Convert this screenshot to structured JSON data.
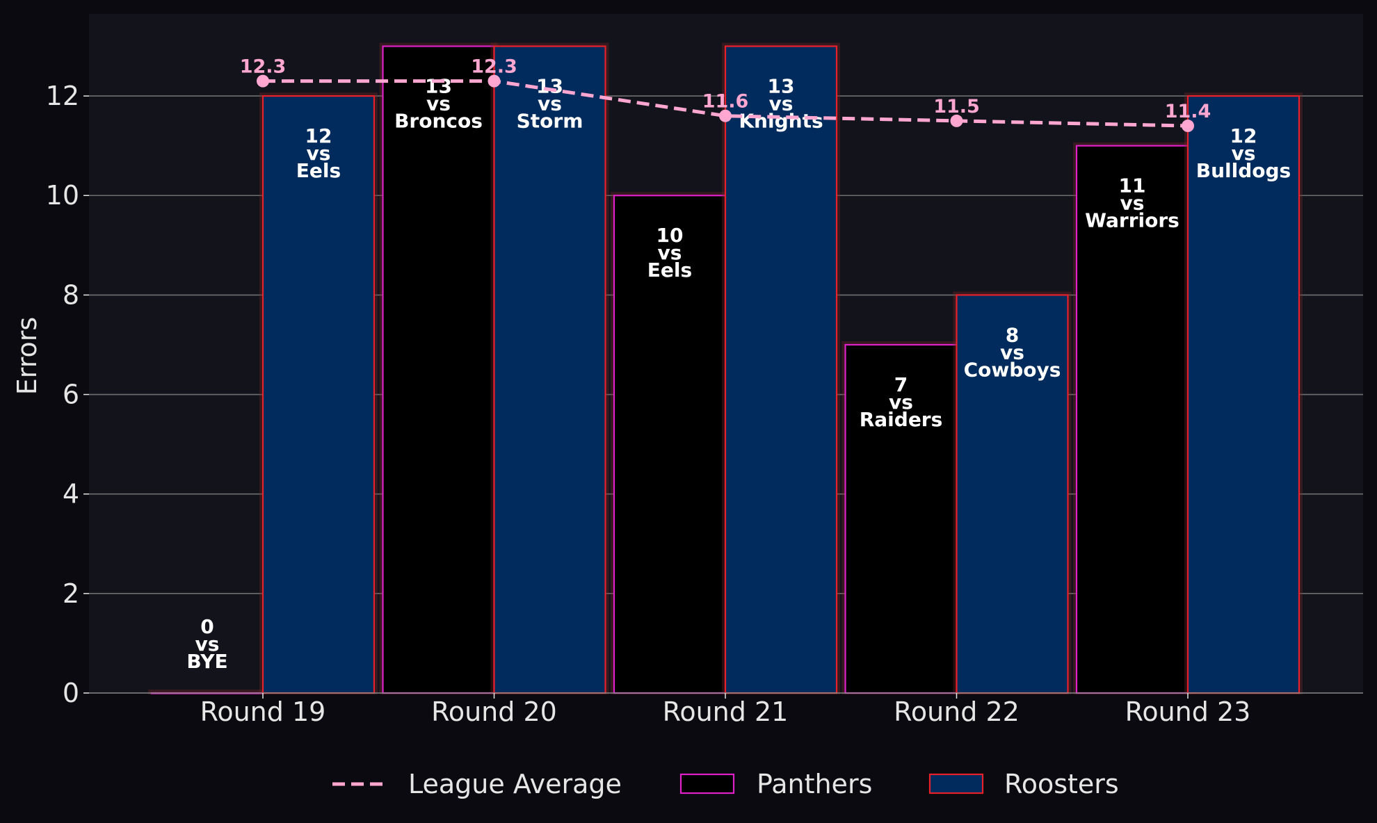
{
  "chart_data": {
    "type": "bar",
    "categories": [
      "Round 19",
      "Round 20",
      "Round 21",
      "Round 22",
      "Round 23"
    ],
    "series": [
      {
        "name": "Panthers",
        "values": [
          0,
          13,
          10,
          7,
          11
        ],
        "opponents": [
          "BYE",
          "Broncos",
          "Eels",
          "Raiders",
          "Warriors"
        ],
        "fill": "#000000",
        "edge": "#e020c8"
      },
      {
        "name": "Roosters",
        "values": [
          12,
          13,
          13,
          8,
          12
        ],
        "opponents": [
          "Eels",
          "Storm",
          "Knights",
          "Cowboys",
          "Bulldogs"
        ],
        "fill": "#002b5c",
        "edge": "#e8202a"
      }
    ],
    "line": {
      "name": "League Average",
      "values": [
        12.3,
        12.3,
        11.6,
        11.5,
        11.4
      ],
      "labels": [
        "12.3",
        "12.3",
        "11.6",
        "11.5",
        "11.4"
      ],
      "color": "#ffa6d1"
    },
    "vs_text": "vs",
    "ylabel": "Errors",
    "xlabel": "",
    "ylim": [
      0,
      13.65
    ],
    "yticks": [
      0,
      2,
      4,
      6,
      8,
      10,
      12
    ],
    "grid": true,
    "legend_position": "bottom-center",
    "colors": {
      "background": "#0b0a10",
      "plot_background": "#13131b",
      "grid": "#6f6f6f",
      "text": "#e6e6e6"
    }
  }
}
